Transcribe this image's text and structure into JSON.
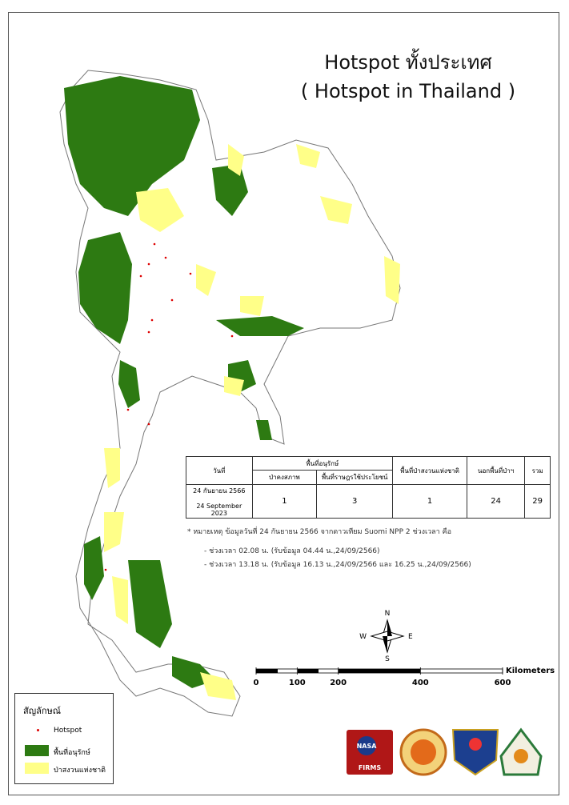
{
  "header": {
    "title": "Hotspot ทั้งประเทศ",
    "subtitle": "( Hotspot in Thailand )"
  },
  "table": {
    "columns": {
      "date": "วันที่",
      "protected": "พื้นที่อนุรักษ์",
      "intact_forest": "ป่าคงสภาพ",
      "used_area": "พื้นที่ราษฎรใช้ประโยชน์",
      "reserve": "พื้นที่ป่าสงวนแห่งชาติ",
      "outside": "นอกพื้นที่ป่าฯ",
      "total": "รวม"
    },
    "rows": [
      [
        "24 กันยายน 2566",
        "24 September 2023",
        1,
        3,
        1,
        24,
        29
      ]
    ]
  },
  "notes": [
    "* หมายเหตุ ข้อมูลวันที่ 24 กันยายน 2566 จากดาวเทียม Suomi NPP 2 ช่วงเวลา คือ",
    "- ช่วงเวลา 02.08 น. (รับข้อมูล 04.44 น.,24/09/2566)",
    "- ช่วงเวลา 13.18 น. (รับข้อมูล 16.13 น.,24/09/2566 และ 16.25 น.,24/09/2566)"
  ],
  "compass": {
    "n": "N",
    "s": "S",
    "e": "E",
    "w": "W"
  },
  "scale_bar": {
    "unit": "Kilometers",
    "ticks": [
      0,
      100,
      200,
      400,
      600
    ]
  },
  "legend": {
    "title": "สัญลักษณ์",
    "items": [
      "Hotspot",
      "พื้นที่อนุรักษ์",
      "ป่าสงวนแห่งชาติ"
    ]
  },
  "logos": {
    "nasa": "NASA",
    "firms": "FIRMS"
  }
}
